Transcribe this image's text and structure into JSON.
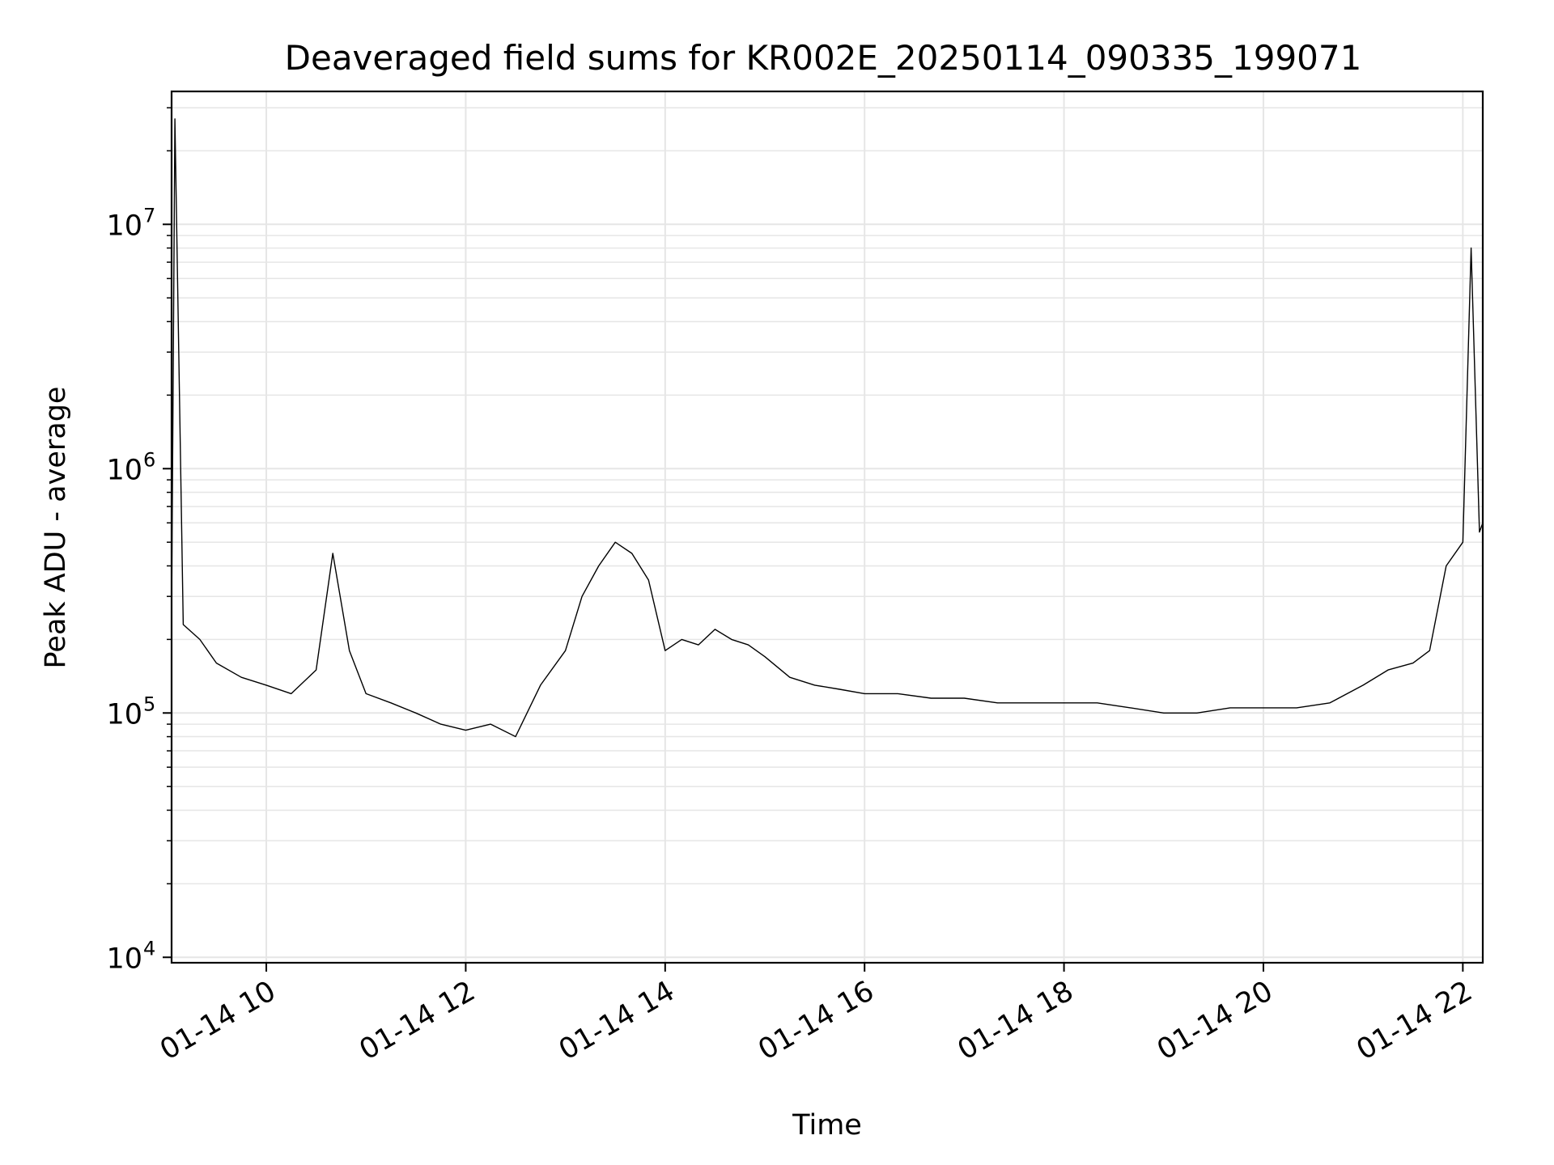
{
  "chart_data": {
    "type": "line",
    "title": "Deaveraged field sums for KR002E_20250114_090335_199071",
    "xlabel": "Time",
    "ylabel": "Peak ADU - average",
    "y_scale": "log",
    "ylim": [
      9500,
      35000000
    ],
    "xlim": [
      "2025-01-14T09:03",
      "2025-01-14T22:12"
    ],
    "x_ticks": [
      {
        "x": "2025-01-14T10:00",
        "label": "01-14 10"
      },
      {
        "x": "2025-01-14T12:00",
        "label": "01-14 12"
      },
      {
        "x": "2025-01-14T14:00",
        "label": "01-14 14"
      },
      {
        "x": "2025-01-14T16:00",
        "label": "01-14 16"
      },
      {
        "x": "2025-01-14T18:00",
        "label": "01-14 18"
      },
      {
        "x": "2025-01-14T20:00",
        "label": "01-14 20"
      },
      {
        "x": "2025-01-14T22:00",
        "label": "01-14 22"
      }
    ],
    "y_ticks": [
      {
        "y": 10000,
        "base": "10",
        "exp": "4"
      },
      {
        "y": 100000,
        "base": "10",
        "exp": "5"
      },
      {
        "y": 1000000,
        "base": "10",
        "exp": "6"
      },
      {
        "y": 10000000,
        "base": "10",
        "exp": "7"
      }
    ],
    "grid": true,
    "line_color": "#000000",
    "grid_color": "#e6e6e6",
    "series": [
      {
        "x": [
          "2025-01-14T09:03",
          "2025-01-14T09:05",
          "2025-01-14T09:10",
          "2025-01-14T09:20",
          "2025-01-14T09:30",
          "2025-01-14T09:45",
          "2025-01-14T10:00",
          "2025-01-14T10:15",
          "2025-01-14T10:30",
          "2025-01-14T10:40",
          "2025-01-14T10:50",
          "2025-01-14T11:00",
          "2025-01-14T11:15",
          "2025-01-14T11:30",
          "2025-01-14T11:45",
          "2025-01-14T12:00",
          "2025-01-14T12:15",
          "2025-01-14T12:30",
          "2025-01-14T12:45",
          "2025-01-14T13:00",
          "2025-01-14T13:10",
          "2025-01-14T13:20",
          "2025-01-14T13:30",
          "2025-01-14T13:40",
          "2025-01-14T13:50",
          "2025-01-14T14:00",
          "2025-01-14T14:10",
          "2025-01-14T14:20",
          "2025-01-14T14:30",
          "2025-01-14T14:40",
          "2025-01-14T14:50",
          "2025-01-14T15:00",
          "2025-01-14T15:15",
          "2025-01-14T15:30",
          "2025-01-14T15:45",
          "2025-01-14T16:00",
          "2025-01-14T16:20",
          "2025-01-14T16:40",
          "2025-01-14T17:00",
          "2025-01-14T17:20",
          "2025-01-14T17:40",
          "2025-01-14T18:00",
          "2025-01-14T18:20",
          "2025-01-14T18:40",
          "2025-01-14T19:00",
          "2025-01-14T19:20",
          "2025-01-14T19:40",
          "2025-01-14T20:00",
          "2025-01-14T20:20",
          "2025-01-14T20:40",
          "2025-01-14T21:00",
          "2025-01-14T21:15",
          "2025-01-14T21:30",
          "2025-01-14T21:40",
          "2025-01-14T21:50",
          "2025-01-14T22:00",
          "2025-01-14T22:05",
          "2025-01-14T22:10",
          "2025-01-14T22:12"
        ],
        "y": [
          250000,
          27000000,
          230000,
          200000,
          160000,
          140000,
          130000,
          120000,
          150000,
          450000,
          180000,
          120000,
          110000,
          100000,
          90000,
          85000,
          90000,
          80000,
          130000,
          180000,
          300000,
          400000,
          500000,
          450000,
          350000,
          180000,
          200000,
          190000,
          220000,
          200000,
          190000,
          170000,
          140000,
          130000,
          125000,
          120000,
          120000,
          115000,
          115000,
          110000,
          110000,
          110000,
          110000,
          105000,
          100000,
          100000,
          105000,
          105000,
          105000,
          110000,
          130000,
          150000,
          160000,
          180000,
          400000,
          500000,
          8000000,
          550000,
          600000
        ]
      }
    ]
  }
}
